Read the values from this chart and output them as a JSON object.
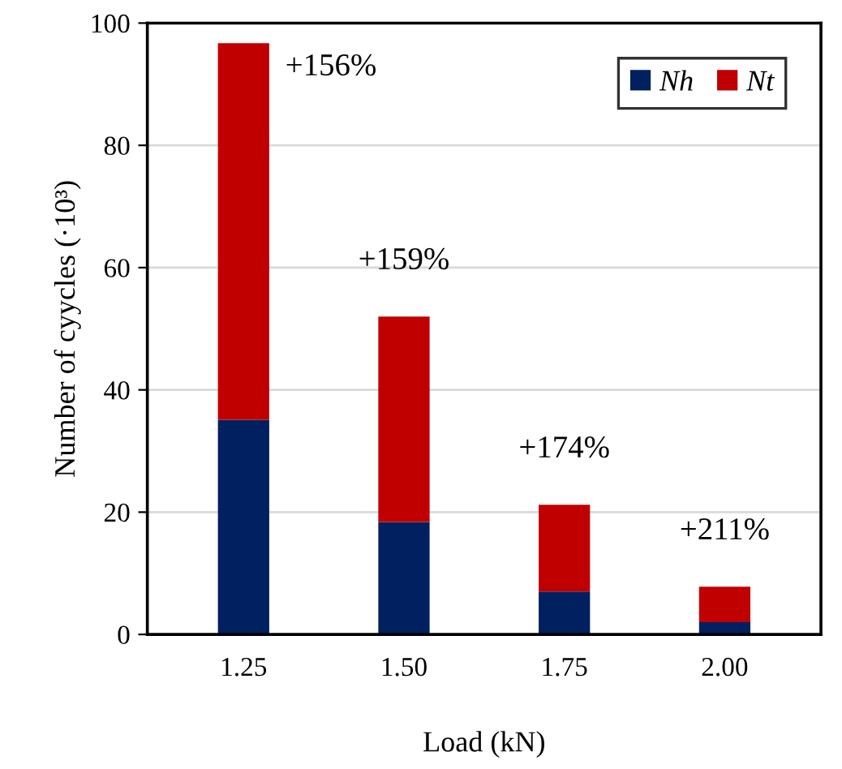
{
  "chart_data": {
    "type": "bar",
    "stacked": true,
    "xlabel": "Load (kN)",
    "ylabel": "Number of cyycles (·10³)",
    "categories": [
      "1.25",
      "1.50",
      "1.75",
      "2.00"
    ],
    "series": [
      {
        "name": "Nh",
        "color": "#002060",
        "values": [
          35.1,
          18.4,
          7.0,
          2.0
        ]
      },
      {
        "name": "Nt",
        "color": "#c00000",
        "values": [
          61.6,
          33.6,
          14.2,
          5.8
        ]
      }
    ],
    "ylim": [
      0,
      100
    ],
    "yticks": [
      0,
      20,
      40,
      60,
      80,
      100
    ],
    "grid": "y",
    "legend": "top right",
    "annotations": [
      "+156%",
      "+159%",
      "+174%",
      "+211%"
    ]
  }
}
